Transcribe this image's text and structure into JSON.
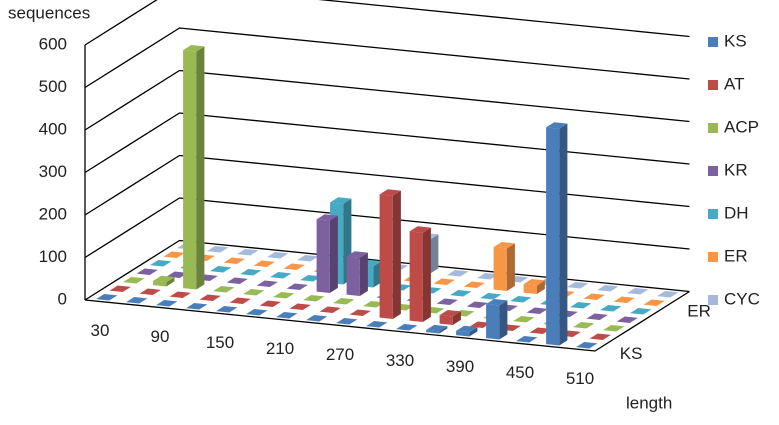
{
  "chart_data": {
    "type": "bar3d",
    "y_label": "sequences",
    "x_label": "length",
    "categories": [
      "30",
      null,
      "90",
      null,
      "150",
      null,
      "210",
      null,
      "270",
      null,
      "330",
      null,
      "390",
      null,
      "450",
      null,
      "510"
    ],
    "depth_labels": [
      "KS",
      null,
      null,
      null,
      null,
      "ER",
      null
    ],
    "ylim": [
      0,
      600
    ],
    "yticks": [
      0,
      100,
      200,
      300,
      400,
      500,
      600
    ],
    "series": [
      {
        "name": "KS",
        "color": "#4a7ebb",
        "values": [
          0,
          0,
          0,
          0,
          0,
          0,
          0,
          0,
          0,
          0,
          0,
          5,
          10,
          80,
          0,
          510,
          0
        ]
      },
      {
        "name": "AT",
        "color": "#be4b48",
        "values": [
          0,
          0,
          0,
          0,
          0,
          0,
          0,
          0,
          0,
          290,
          210,
          20,
          0,
          0,
          0,
          0,
          0
        ]
      },
      {
        "name": "ACP",
        "color": "#98b954",
        "values": [
          0,
          10,
          560,
          0,
          0,
          0,
          0,
          0,
          0,
          0,
          0,
          0,
          0,
          0,
          0,
          0,
          0
        ]
      },
      {
        "name": "KR",
        "color": "#7d60a0",
        "values": [
          0,
          0,
          0,
          0,
          0,
          0,
          170,
          90,
          0,
          0,
          0,
          0,
          0,
          0,
          0,
          0,
          0
        ]
      },
      {
        "name": "DH",
        "color": "#46aac5",
        "values": [
          0,
          0,
          0,
          0,
          0,
          0,
          190,
          50,
          0,
          0,
          0,
          0,
          0,
          0,
          0,
          0,
          0
        ]
      },
      {
        "name": "ER",
        "color": "#f79646",
        "values": [
          0,
          0,
          0,
          0,
          0,
          0,
          0,
          0,
          0,
          0,
          0,
          100,
          20,
          0,
          0,
          0,
          0
        ]
      },
      {
        "name": "CYC",
        "color": "#a5b9dc",
        "values": [
          0,
          0,
          0,
          0,
          0,
          0,
          0,
          0,
          80,
          0,
          0,
          0,
          0,
          0,
          0,
          0,
          0
        ]
      }
    ]
  }
}
